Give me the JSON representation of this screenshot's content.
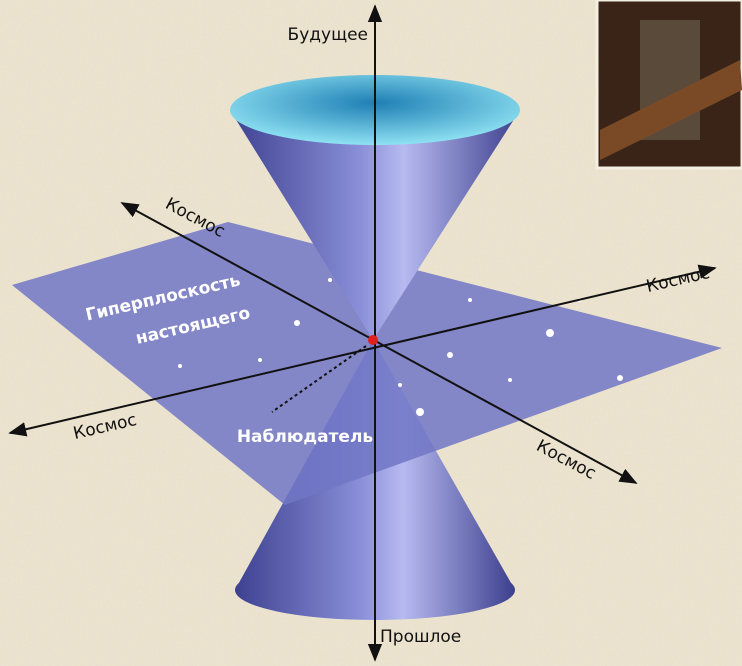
{
  "axes": {
    "future": "Будущее",
    "past": "Прошлое",
    "space": [
      "Космос",
      "Космос",
      "Космос",
      "Космос"
    ]
  },
  "hyperplane": {
    "label": [
      "Гиперплоскость",
      "настоящего"
    ]
  },
  "observer": {
    "label": "Наблюдатель"
  }
}
